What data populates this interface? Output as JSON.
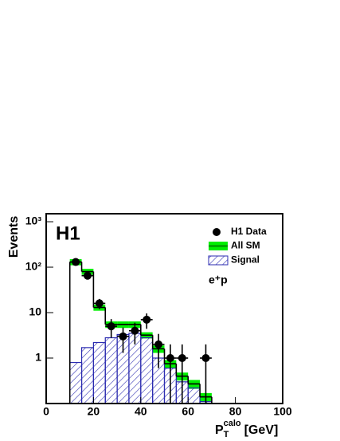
{
  "chart_data": {
    "type": "histogram",
    "bins": [
      10,
      15,
      20,
      25,
      30,
      35,
      40,
      45,
      50,
      55,
      60,
      65,
      70
    ],
    "series": [
      {
        "name": "All SM",
        "color": "#00ee00",
        "values": [
          130,
          80,
          13,
          5.5,
          5.5,
          5.5,
          3.2,
          1.6,
          0.75,
          0.4,
          0.27,
          0.14
        ],
        "errors": [
          20,
          12,
          2,
          0.9,
          0.9,
          0.9,
          0.5,
          0.3,
          0.15,
          0.08,
          0.06,
          0.03
        ]
      },
      {
        "name": "Signal",
        "color": "#2b2bb0",
        "values": [
          0.8,
          1.7,
          2.2,
          2.8,
          3.3,
          3.5,
          2.8,
          1.0,
          0.6,
          0.3,
          0.22,
          0.11
        ]
      }
    ],
    "points": {
      "name": "H1 Data",
      "color": "#000000",
      "x": [
        12.5,
        17.5,
        22.5,
        27.5,
        32.5,
        37.5,
        42.5,
        47.5,
        52.5,
        57.5,
        67.5
      ],
      "values": [
        130,
        65,
        16,
        5,
        3,
        4,
        7,
        2,
        1,
        1,
        1
      ],
      "errors": [
        11,
        8,
        4,
        2.2,
        1.7,
        2,
        2.6,
        1.4,
        1,
        1,
        1
      ]
    },
    "xlim": [
      0,
      100
    ],
    "xticks": [
      0,
      20,
      40,
      60,
      80,
      100
    ],
    "ylim": [
      0.1,
      1500
    ],
    "log_y": true,
    "yticks": [
      1,
      10,
      {
        "value": 100,
        "label": "10²"
      },
      {
        "value": 1000,
        "label": "10³"
      }
    ],
    "ylabel": "Events",
    "xlabel": {
      "base": "P",
      "sub": "T",
      "sup": "calo",
      "unit": "[GeV]"
    },
    "annotations": [
      "H1",
      "e⁺p"
    ]
  }
}
